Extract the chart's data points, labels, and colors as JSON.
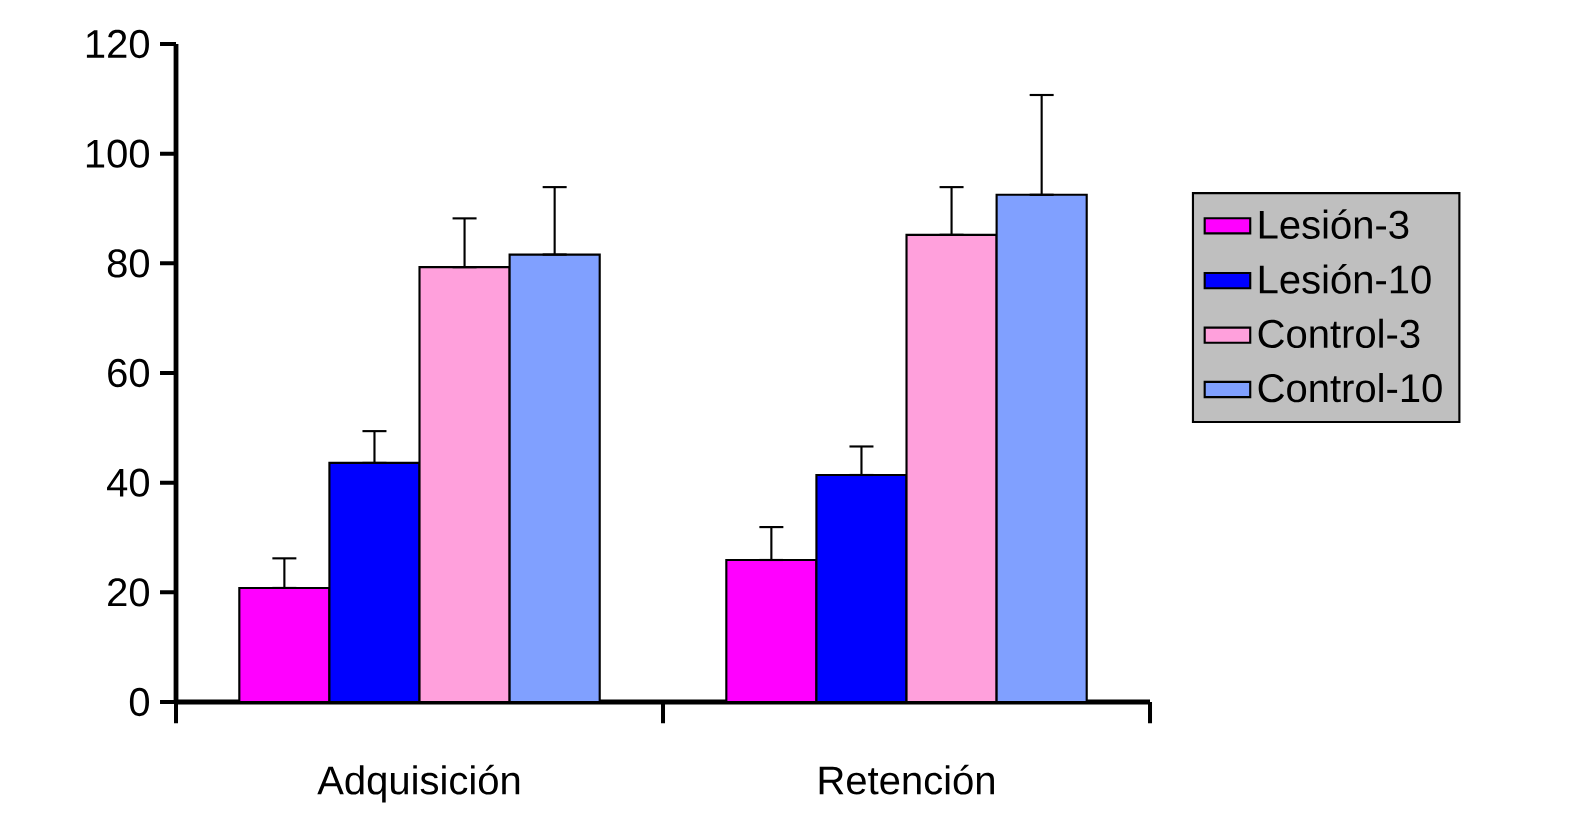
{
  "chart_data": {
    "type": "bar",
    "categories": [
      "Adquisición",
      "Retención"
    ],
    "series": [
      {
        "name": "Lesión-3",
        "color": "#ff00ff",
        "values": [
          20.8,
          25.9
        ],
        "errors": [
          [
            20.8,
            26.2
          ],
          [
            25.9,
            31.9
          ]
        ]
      },
      {
        "name": "Lesión-10",
        "color": "#0000ff",
        "values": [
          43.6,
          41.4
        ],
        "errors": [
          [
            43.6,
            49.4
          ],
          [
            41.4,
            46.6
          ]
        ]
      },
      {
        "name": "Control-3",
        "color": "#ffa0dc",
        "values": [
          79.3,
          85.2
        ],
        "errors": [
          [
            79.3,
            88.2
          ],
          [
            85.2,
            93.9
          ]
        ]
      },
      {
        "name": "Control-10",
        "color": "#80a0ff",
        "values": [
          81.6,
          92.5
        ],
        "errors": [
          [
            81.6,
            93.9
          ],
          [
            92.5,
            110.7
          ]
        ]
      }
    ],
    "ylim": [
      0,
      120
    ],
    "yticks": [
      0,
      20,
      40,
      60,
      80,
      100,
      120
    ],
    "grid": false,
    "legend": "right"
  }
}
